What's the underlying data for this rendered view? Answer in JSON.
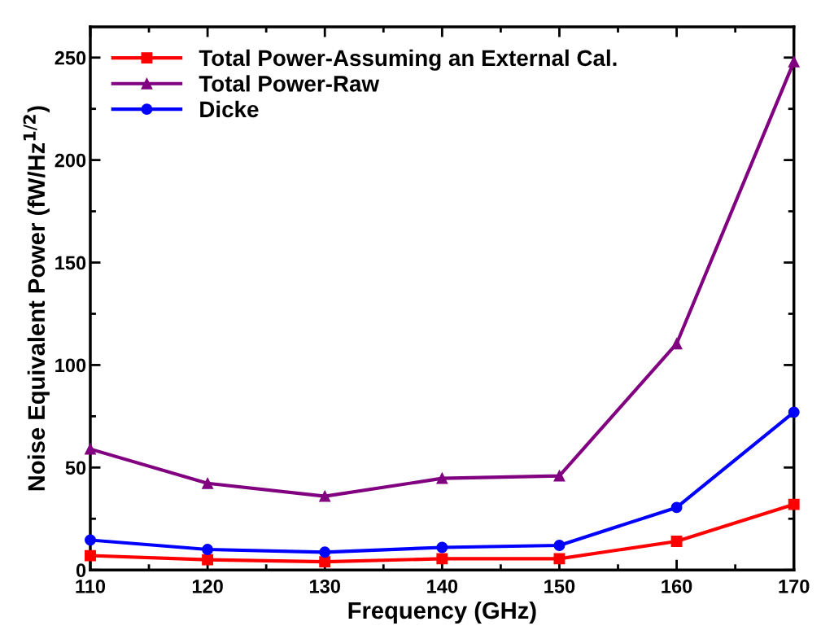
{
  "chart_data": {
    "type": "line",
    "xlabel": "Frequency (GHz)",
    "ylabel": "Noise Equivalent Power (fW/Hz$^{1/2}$)",
    "x": [
      110,
      120,
      130,
      140,
      150,
      160,
      170
    ],
    "series": [
      {
        "name": "Total Power-Assuming an External Cal.",
        "color": "#ff0000",
        "marker": "square",
        "values": [
          7,
          5,
          4,
          5.5,
          5.5,
          14,
          32
        ]
      },
      {
        "name": "Total Power-Raw",
        "color": "#800080",
        "marker": "triangle",
        "values": [
          59,
          42.3,
          36,
          44.7,
          45.9,
          110.4,
          248
        ]
      },
      {
        "name": "Dicke",
        "color": "#0000ff",
        "marker": "circle",
        "values": [
          14.6,
          10,
          8.7,
          11,
          12,
          30.5,
          77
        ]
      }
    ],
    "xlim": [
      110,
      170
    ],
    "xticks": [
      110,
      120,
      130,
      140,
      150,
      160,
      170
    ],
    "ylim": [
      0,
      265
    ],
    "yticks": [
      0,
      50,
      100,
      150,
      200,
      250
    ],
    "grid": false,
    "legend": "top left",
    "line_style": "solid"
  }
}
